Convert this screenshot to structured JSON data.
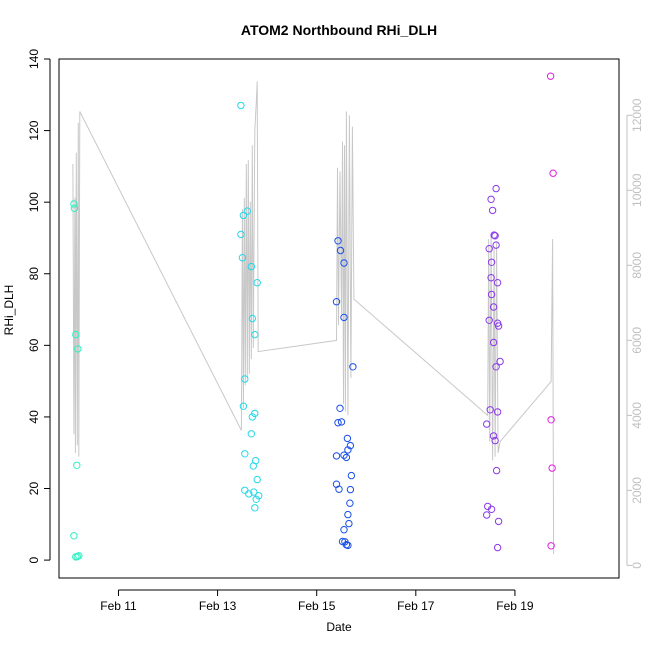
{
  "chart_data": {
    "type": "scatter",
    "title": "ATOM2 Northbound RHi_DLH",
    "xlabel": "Date",
    "ylabel": "RHi_DLH",
    "x_unit": "days (February)",
    "xlim": [
      9.8,
      21.1
    ],
    "ylim": [
      -5,
      140
    ],
    "y2lim": [
      -335,
      13500
    ],
    "x_ticks": [
      {
        "value": 11,
        "label": "Feb 11"
      },
      {
        "value": 13,
        "label": "Feb 13"
      },
      {
        "value": 15,
        "label": "Feb 15"
      },
      {
        "value": 17,
        "label": "Feb 17"
      },
      {
        "value": 19,
        "label": "Feb 19"
      }
    ],
    "y_ticks": [
      0,
      20,
      40,
      60,
      80,
      100,
      120,
      140
    ],
    "y2_ticks": [
      0,
      2000,
      4000,
      6000,
      8000,
      10000,
      12000
    ],
    "colors": {
      "axis": "#000000",
      "secondary_axis": "#c0c0c0",
      "line": "#c8c8c8"
    },
    "series": [
      {
        "color": "#2ef0c0",
        "points": [
          [
            10.1,
            99.5
          ],
          [
            10.11,
            98.3
          ],
          [
            10.1,
            6.8
          ],
          [
            10.14,
            63.0
          ],
          [
            10.18,
            59.0
          ],
          [
            10.16,
            26.5
          ],
          [
            10.14,
            0.9
          ],
          [
            10.17,
            1.0
          ],
          [
            10.2,
            1.2
          ]
        ]
      },
      {
        "color": "#25d8e8",
        "points": [
          [
            13.47,
            127.0
          ],
          [
            13.47,
            91.0
          ],
          [
            13.5,
            84.5
          ],
          [
            13.52,
            96.3
          ],
          [
            13.6,
            97.5
          ],
          [
            13.55,
            50.6
          ],
          [
            13.52,
            43.0
          ],
          [
            13.55,
            29.7
          ],
          [
            13.55,
            19.5
          ],
          [
            13.63,
            18.5
          ],
          [
            13.68,
            82.0
          ],
          [
            13.7,
            67.5
          ],
          [
            13.75,
            63.0
          ],
          [
            13.8,
            77.5
          ],
          [
            13.68,
            35.3
          ],
          [
            13.7,
            40.0
          ],
          [
            13.75,
            41.0
          ],
          [
            13.72,
            26.3
          ],
          [
            13.77,
            27.8
          ],
          [
            13.8,
            22.5
          ],
          [
            13.73,
            19.0
          ],
          [
            13.78,
            17.0
          ],
          [
            13.83,
            18.0
          ],
          [
            13.75,
            14.6
          ]
        ]
      },
      {
        "color": "#1a50e8",
        "points": [
          [
            15.43,
            89.2
          ],
          [
            15.48,
            86.5
          ],
          [
            15.55,
            83.0
          ],
          [
            15.4,
            72.2
          ],
          [
            15.55,
            67.8
          ],
          [
            15.73,
            54.0
          ],
          [
            15.47,
            42.4
          ],
          [
            15.43,
            38.4
          ],
          [
            15.5,
            38.6
          ],
          [
            15.62,
            34.0
          ],
          [
            15.68,
            32.0
          ],
          [
            15.63,
            30.8
          ],
          [
            15.4,
            29.1
          ],
          [
            15.55,
            29.3
          ],
          [
            15.6,
            28.7
          ],
          [
            15.7,
            23.6
          ],
          [
            15.4,
            21.2
          ],
          [
            15.45,
            19.8
          ],
          [
            15.68,
            19.7
          ],
          [
            15.67,
            15.9
          ],
          [
            15.63,
            12.7
          ],
          [
            15.65,
            10.2
          ],
          [
            15.55,
            8.5
          ],
          [
            15.52,
            5.2
          ],
          [
            15.57,
            5.1
          ],
          [
            15.6,
            4.3
          ],
          [
            15.63,
            4.1
          ]
        ]
      },
      {
        "color": "#8a3ae8",
        "points": [
          [
            18.62,
            103.8
          ],
          [
            18.52,
            100.8
          ],
          [
            18.55,
            97.7
          ],
          [
            18.58,
            90.8
          ],
          [
            18.6,
            90.6
          ],
          [
            18.62,
            88.0
          ],
          [
            18.48,
            87.0
          ],
          [
            18.53,
            83.2
          ],
          [
            18.52,
            78.9
          ],
          [
            18.65,
            77.5
          ],
          [
            18.53,
            74.2
          ],
          [
            18.57,
            70.7
          ],
          [
            18.48,
            67.0
          ],
          [
            18.65,
            66.2
          ],
          [
            18.67,
            65.4
          ],
          [
            18.57,
            60.8
          ],
          [
            18.7,
            55.5
          ],
          [
            18.62,
            54.0
          ],
          [
            18.5,
            42.0
          ],
          [
            18.65,
            41.4
          ],
          [
            18.43,
            38.0
          ],
          [
            18.57,
            34.7
          ],
          [
            18.6,
            33.4
          ],
          [
            18.63,
            25.0
          ],
          [
            18.45,
            15.0
          ],
          [
            18.53,
            14.2
          ],
          [
            18.43,
            12.6
          ],
          [
            18.67,
            10.8
          ],
          [
            18.65,
            3.5
          ]
        ]
      },
      {
        "color": "#e020e0",
        "points": [
          [
            19.72,
            135.2
          ],
          [
            19.77,
            108.1
          ],
          [
            19.73,
            39.2
          ],
          [
            19.75,
            25.7
          ],
          [
            19.73,
            4.0
          ]
        ]
      }
    ],
    "secondary_series": {
      "axis": "right",
      "type": "line",
      "points": [
        [
          10.08,
          10700
        ],
        [
          10.1,
          3500
        ],
        [
          10.12,
          9800
        ],
        [
          10.13,
          3000
        ],
        [
          10.15,
          11000
        ],
        [
          10.17,
          3200
        ],
        [
          10.19,
          11800
        ],
        [
          10.2,
          2900
        ],
        [
          10.22,
          12100
        ],
        [
          13.48,
          3600
        ],
        [
          13.5,
          9500
        ],
        [
          13.52,
          4200
        ],
        [
          13.54,
          9800
        ],
        [
          13.56,
          4800
        ],
        [
          13.58,
          10700
        ],
        [
          13.6,
          5000
        ],
        [
          13.62,
          10800
        ],
        [
          13.64,
          5100
        ],
        [
          13.66,
          9700
        ],
        [
          13.68,
          5500
        ],
        [
          13.7,
          11200
        ],
        [
          13.72,
          5800
        ],
        [
          13.75,
          11600
        ],
        [
          13.78,
          12300
        ],
        [
          13.8,
          12900
        ],
        [
          13.82,
          5700
        ],
        [
          15.4,
          6000
        ],
        [
          15.42,
          10600
        ],
        [
          15.44,
          6400
        ],
        [
          15.47,
          10500
        ],
        [
          15.5,
          6700
        ],
        [
          15.52,
          11300
        ],
        [
          15.54,
          4300
        ],
        [
          15.56,
          11200
        ],
        [
          15.58,
          4100
        ],
        [
          15.6,
          12100
        ],
        [
          15.63,
          4000
        ],
        [
          15.66,
          12000
        ],
        [
          15.69,
          5000
        ],
        [
          15.72,
          11700
        ],
        [
          15.75,
          7100
        ],
        [
          18.45,
          4000
        ],
        [
          18.47,
          8700
        ],
        [
          18.49,
          3300
        ],
        [
          18.52,
          8800
        ],
        [
          18.55,
          2800
        ],
        [
          18.58,
          8500
        ],
        [
          18.6,
          2900
        ],
        [
          18.63,
          8600
        ],
        [
          18.66,
          3000
        ],
        [
          18.7,
          3300
        ],
        [
          19.73,
          4900
        ],
        [
          19.76,
          8700
        ],
        [
          19.78,
          300
        ]
      ]
    }
  }
}
